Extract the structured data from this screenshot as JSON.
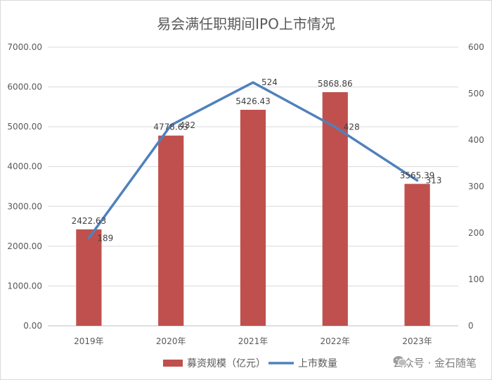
{
  "chart_data": {
    "type": "bar",
    "title": "易会满任职期间IPO上市情况",
    "categories": [
      "2019年",
      "2020年",
      "2021年",
      "2022年",
      "2023年"
    ],
    "series": [
      {
        "name": "募资规模（亿元）",
        "type": "bar",
        "axis": "left",
        "color": "#c0504d",
        "values": [
          2422.63,
          4778.63,
          5426.43,
          5868.86,
          3565.39
        ],
        "labels": [
          "2422.63",
          "4778.63",
          "5426.43",
          "5868.86",
          "3565.39"
        ]
      },
      {
        "name": "上市数量",
        "type": "line",
        "axis": "right",
        "color": "#4f81bd",
        "values": [
          189,
          432,
          524,
          428,
          313
        ],
        "labels": [
          "189",
          "432",
          "524",
          "428",
          "313"
        ]
      }
    ],
    "y_left": {
      "ylim": [
        0,
        7000
      ],
      "ticks": [
        "0.00",
        "1000.00",
        "2000.00",
        "3000.00",
        "4000.00",
        "5000.00",
        "6000.00",
        "7000.00"
      ]
    },
    "y_right": {
      "ylim": [
        0,
        600
      ],
      "ticks": [
        "0",
        "100",
        "200",
        "300",
        "400",
        "500",
        "600"
      ]
    },
    "grid": true,
    "legend_position": "bottom"
  },
  "watermark": {
    "icon": "wechat-icon",
    "text": "公众号 · 金石随笔"
  }
}
